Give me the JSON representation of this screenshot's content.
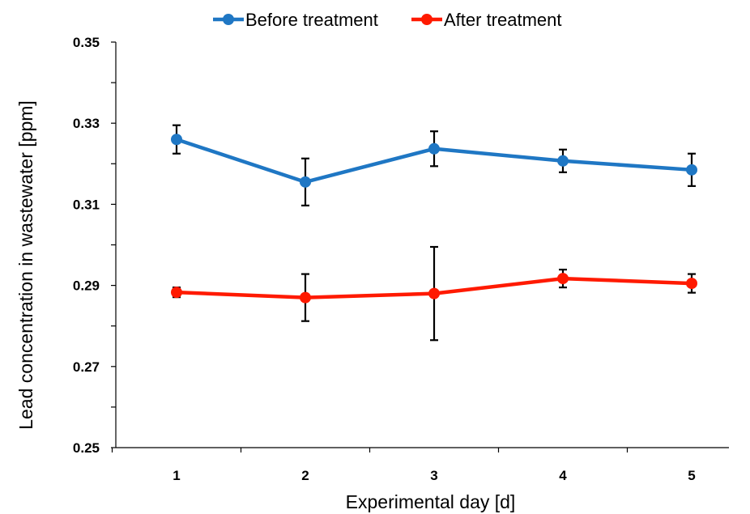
{
  "chart_data": {
    "type": "line",
    "title": "",
    "xlabel": "Experimental day [d]",
    "ylabel": "Lead concentration in wastewater [ppm]",
    "x": [
      1,
      2,
      3,
      4,
      5
    ],
    "x_tick_labels": [
      "1",
      "2",
      "3",
      "4",
      "5"
    ],
    "ylim": [
      0.25,
      0.35
    ],
    "y_ticks": [
      0.25,
      0.27,
      0.29,
      0.31,
      0.33,
      0.35
    ],
    "y_tick_labels": [
      "0.25",
      "0.27",
      "0.29",
      "0.31",
      "0.33",
      "0.35"
    ],
    "grid": false,
    "legend_position": "top",
    "series": [
      {
        "name": "Before treatment",
        "color": "#1f77c4",
        "values": [
          0.326,
          0.3155,
          0.3237,
          0.3207,
          0.3185
        ],
        "error": [
          0.0035,
          0.0058,
          0.0043,
          0.0028,
          0.004
        ]
      },
      {
        "name": "After treatment",
        "color": "#ff1a00",
        "values": [
          0.2883,
          0.287,
          0.288,
          0.2917,
          0.2905
        ],
        "error": [
          0.0012,
          0.0058,
          0.0115,
          0.0022,
          0.0023
        ]
      }
    ]
  }
}
